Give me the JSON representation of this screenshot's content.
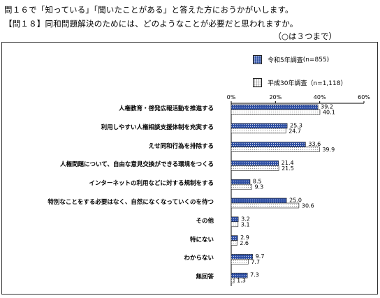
{
  "question": {
    "line1": "問１６で「知っている」「聞いたことがある」と答えた方におうかがいします。",
    "line2": "【問１８】同和問題解決のためには、どのようなことが必要だと思われますか。",
    "note": "（○は３つまで）"
  },
  "colors": {
    "r5": "#2e4fa3",
    "h30": "#ffffff",
    "frame": "#333333"
  },
  "chart_data": {
    "type": "bar",
    "orientation": "horizontal",
    "categories": [
      "人権教育・啓発広報活動を推進する",
      "利用しやすい人権相談支援体制を充実する",
      "えせ同和行為を排除する",
      "人権問題について、自由な意見交換ができる環境をつくる",
      "インターネットの利用などに対する規制をする",
      "特別なことをする必要はなく、自然になくなっていくのを待つ",
      "その他",
      "特にない",
      "わからない",
      "無回答"
    ],
    "series": [
      {
        "name": "令和5年調査",
        "n": "(n=855)",
        "values": [
          39.2,
          25.3,
          33.6,
          21.4,
          8.5,
          25.0,
          3.2,
          2.9,
          9.7,
          7.3
        ]
      },
      {
        "name": "平成30年調査",
        "n": "（n=1,118）",
        "values": [
          40.1,
          24.7,
          39.9,
          21.5,
          9.3,
          30.6,
          3.1,
          2.6,
          7.7,
          1.3
        ]
      }
    ],
    "value_labels": [
      [
        "39.2",
        "25.3",
        "33.6",
        "21.4",
        "8.5",
        "25.0",
        "3.2",
        "2.9",
        "9.7",
        "7.3"
      ],
      [
        "40.1",
        "24.7",
        "39.9",
        "21.5",
        "9.3",
        "30.6",
        "3.1",
        "2.6",
        "7.7",
        "1.3"
      ]
    ],
    "xlim": [
      0,
      60
    ],
    "xticks": [
      "0%",
      "20%",
      "40%",
      "60%"
    ],
    "xtick_values": [
      0,
      20,
      40,
      60
    ],
    "grid": false,
    "legend_position": "top-right"
  }
}
